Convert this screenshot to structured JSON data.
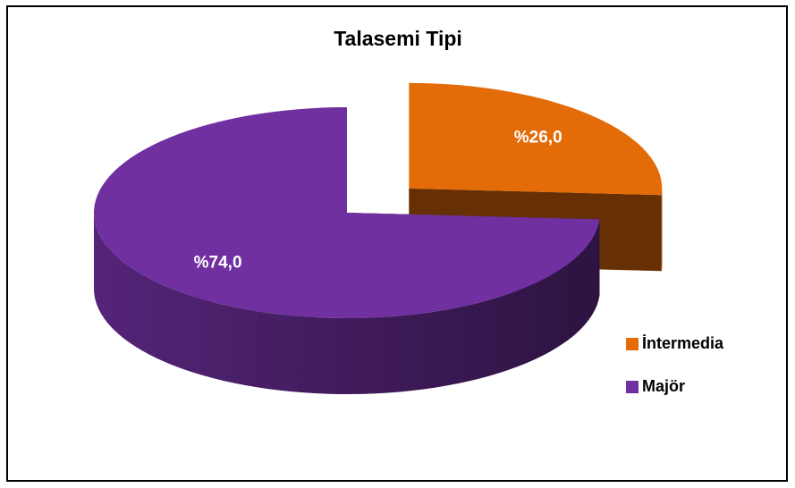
{
  "chart_data": {
    "type": "pie",
    "title": "Talasemi Tipi",
    "categories": [
      "İntermedia",
      "Majör"
    ],
    "values": [
      26.0,
      74.0
    ],
    "value_labels": [
      "%26,0",
      "%74,0"
    ],
    "colors": [
      "#e36c09",
      "#7030a0"
    ],
    "legend": "right"
  }
}
